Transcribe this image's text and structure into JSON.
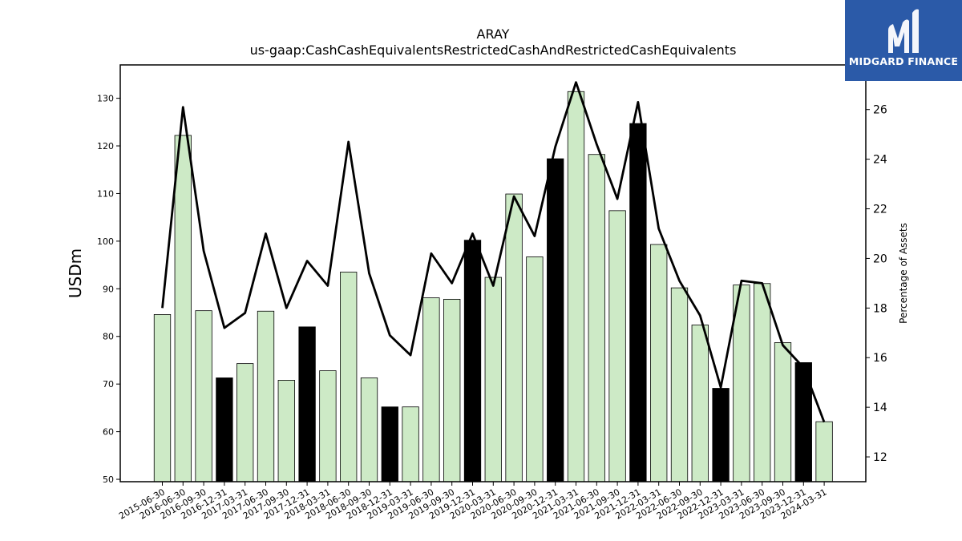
{
  "brand": {
    "name": "MIDGARD FINANCE",
    "logo_icon": "midgard-m-logo-icon",
    "color": "#2b5aa8"
  },
  "chart_data": {
    "type": "bar",
    "title": "ARAY",
    "subtitle": "us-gaap:CashCashEquivalentsRestrictedCashAndRestrictedCashEquivalents",
    "ylabel": "USDm",
    "y2label": "Percentage of Assets",
    "ylim": [
      49.5,
      137
    ],
    "y2lim": [
      11,
      27.8
    ],
    "yticks": [
      50,
      60,
      70,
      80,
      90,
      100,
      110,
      120,
      130
    ],
    "y2ticks": [
      12,
      14,
      16,
      18,
      20,
      22,
      24,
      26
    ],
    "grid": false,
    "bar_color_q": "#cdeac6",
    "bar_color_annual": "#000000",
    "line_color": "#000000",
    "categories": [
      "2015-06-30",
      "2016-06-30",
      "2016-09-30",
      "2016-12-31",
      "2017-03-31",
      "2017-06-30",
      "2017-09-30",
      "2017-12-31",
      "2018-03-31",
      "2018-06-30",
      "2018-09-30",
      "2018-12-31",
      "2019-03-31",
      "2019-06-30",
      "2019-09-30",
      "2019-12-31",
      "2020-03-31",
      "2020-06-30",
      "2020-09-30",
      "2020-12-31",
      "2021-03-31",
      "2021-06-30",
      "2021-09-30",
      "2021-12-31",
      "2022-03-31",
      "2022-06-30",
      "2022-09-30",
      "2022-12-31",
      "2023-03-31",
      "2023-06-30",
      "2023-09-30",
      "2023-12-31",
      "2024-03-31"
    ],
    "series": [
      {
        "kind": "bar",
        "values": [
          84.6,
          122.2,
          85.4,
          71.3,
          74.3,
          85.3,
          70.8,
          82.0,
          72.8,
          93.5,
          71.3,
          65.2,
          65.2,
          88.1,
          87.8,
          100.2,
          92.4,
          109.9,
          96.7,
          117.3,
          131.4,
          118.2,
          106.4,
          124.7,
          99.3,
          90.2,
          82.4,
          69.1,
          90.8,
          91.1,
          78.7,
          74.5,
          62.1
        ],
        "highlight": [
          false,
          false,
          false,
          true,
          false,
          false,
          false,
          true,
          false,
          false,
          false,
          true,
          false,
          false,
          false,
          true,
          false,
          false,
          false,
          true,
          false,
          false,
          false,
          true,
          false,
          false,
          false,
          true,
          false,
          false,
          false,
          true,
          false
        ]
      },
      {
        "kind": "line",
        "axis": "right",
        "values": [
          18.0,
          26.1,
          20.3,
          17.2,
          17.8,
          21.0,
          18.0,
          19.9,
          18.9,
          24.7,
          19.4,
          16.9,
          16.1,
          20.2,
          19.0,
          21.0,
          18.9,
          22.5,
          20.9,
          24.5,
          27.1,
          24.6,
          22.4,
          26.3,
          21.2,
          19.1,
          17.7,
          14.8,
          19.1,
          19.0,
          16.5,
          15.6,
          13.4
        ]
      }
    ]
  }
}
